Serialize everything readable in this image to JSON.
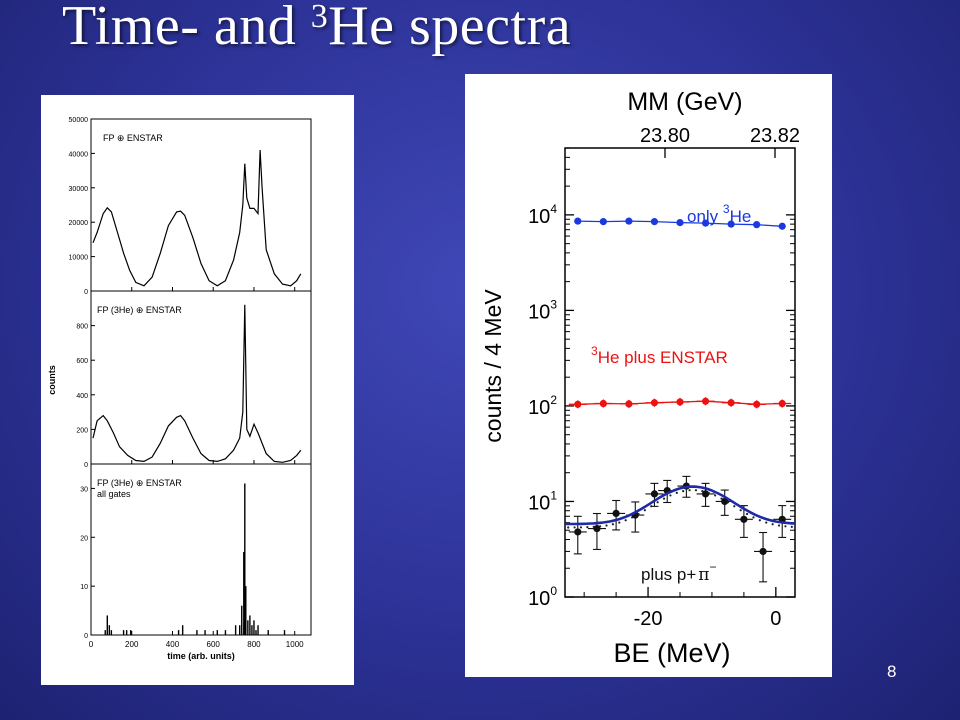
{
  "slide": {
    "title_main": "Time- and ",
    "title_sup": "3",
    "title_end": "He spectra",
    "page_number": "8"
  },
  "chart_data": [
    {
      "type": "line",
      "panel": "top",
      "label": "FP ⊕ ENSTAR",
      "xlabel": "time (arb. units)",
      "ylabel": "counts",
      "xlim": [
        0,
        1080
      ],
      "ylim": [
        0,
        50000
      ],
      "yticks": [
        0,
        10000,
        20000,
        30000,
        40000,
        50000
      ],
      "xticks": [
        0,
        200,
        400,
        600,
        800,
        1000
      ],
      "x": [
        10,
        30,
        60,
        80,
        100,
        130,
        160,
        190,
        220,
        260,
        300,
        340,
        380,
        420,
        440,
        460,
        500,
        540,
        580,
        620,
        660,
        700,
        730,
        745,
        755,
        765,
        780,
        800,
        820,
        830,
        840,
        860,
        900,
        940,
        980,
        1010,
        1030
      ],
      "values": [
        14000,
        17000,
        22500,
        24200,
        23000,
        17000,
        11000,
        6000,
        2500,
        1500,
        4000,
        11000,
        19000,
        23000,
        23200,
        22000,
        15500,
        8000,
        3000,
        1500,
        3000,
        9000,
        17000,
        25000,
        37000,
        27000,
        24000,
        24000,
        22500,
        41000,
        30000,
        12000,
        5000,
        2000,
        1500,
        3000,
        5000
      ]
    },
    {
      "type": "line",
      "panel": "middle",
      "label": "FP (3He) ⊕ ENSTAR",
      "ylim": [
        0,
        1000
      ],
      "yticks": [
        0,
        200,
        400,
        600,
        800
      ],
      "x": [
        10,
        30,
        60,
        80,
        110,
        140,
        180,
        220,
        260,
        300,
        340,
        380,
        420,
        440,
        460,
        500,
        540,
        580,
        620,
        660,
        700,
        730,
        745,
        755,
        765,
        780,
        800,
        820,
        860,
        900,
        940,
        980,
        1010,
        1030
      ],
      "values": [
        150,
        250,
        280,
        250,
        180,
        100,
        50,
        20,
        15,
        40,
        120,
        220,
        270,
        280,
        250,
        150,
        60,
        20,
        15,
        30,
        80,
        150,
        300,
        920,
        200,
        160,
        230,
        180,
        60,
        15,
        10,
        20,
        50,
        80
      ]
    },
    {
      "type": "bar",
      "panel": "bottom",
      "label": "FP (3He) ⊕ ENSTAR",
      "label2": "all gates",
      "ylim": [
        0,
        35
      ],
      "yticks": [
        0,
        10,
        20,
        30
      ],
      "x": [
        70,
        80,
        90,
        100,
        160,
        175,
        195,
        430,
        450,
        520,
        560,
        620,
        660,
        710,
        730,
        740,
        750,
        755,
        760,
        770,
        780,
        790,
        800,
        810,
        820,
        870,
        950
      ],
      "values": [
        1,
        4,
        2,
        1,
        1,
        1,
        1,
        1,
        2,
        1,
        1,
        1,
        1,
        2,
        2,
        6,
        17,
        31,
        10,
        3,
        4,
        2,
        3,
        1,
        2,
        1,
        1
      ]
    },
    {
      "type": "scatter",
      "panel": "right",
      "ylog": true,
      "xlabel": "BE (MeV)",
      "ylabel": "counts / 4 MeV",
      "top_axis_label": "MM (GeV)",
      "top_ticks": [
        "23.80",
        "23.82"
      ],
      "xticks": [
        -20,
        0
      ],
      "xlim": [
        -33,
        3
      ],
      "ylim_exp": [
        0,
        4.7
      ],
      "series": [
        {
          "name": "only 3He",
          "label_main": "only ",
          "label_sup": "3",
          "label_end": "He",
          "color": "#1a3adf",
          "x": [
            -31,
            -27,
            -23,
            -19,
            -15,
            -11,
            -7,
            -3,
            1
          ],
          "values": [
            8600,
            8500,
            8600,
            8500,
            8300,
            8200,
            8000,
            7900,
            7600
          ]
        },
        {
          "name": "3He plus ENSTAR",
          "label_sup": "3",
          "label_end": "He plus ENSTAR",
          "color": "#ee1111",
          "x": [
            -31,
            -27,
            -23,
            -19,
            -15,
            -11,
            -7,
            -3,
            1
          ],
          "values": [
            104,
            106,
            105,
            108,
            110,
            112,
            108,
            104,
            106
          ]
        },
        {
          "name": "plus p+π⁻",
          "label": "plus p+",
          "label_sym": "π",
          "label_sup": "−",
          "color": "#111111",
          "x": [
            -31,
            -28,
            -25,
            -22,
            -19,
            -17,
            -14,
            -11,
            -8,
            -5,
            -2,
            1
          ],
          "values": [
            4.8,
            5.2,
            7.5,
            7.2,
            12,
            13,
            14.5,
            12,
            10,
            6.5,
            3.0,
            6.5
          ]
        }
      ],
      "fit": {
        "baseline": 5.8,
        "peak": 14.3,
        "center": -13,
        "sigma": 5.2
      }
    }
  ]
}
